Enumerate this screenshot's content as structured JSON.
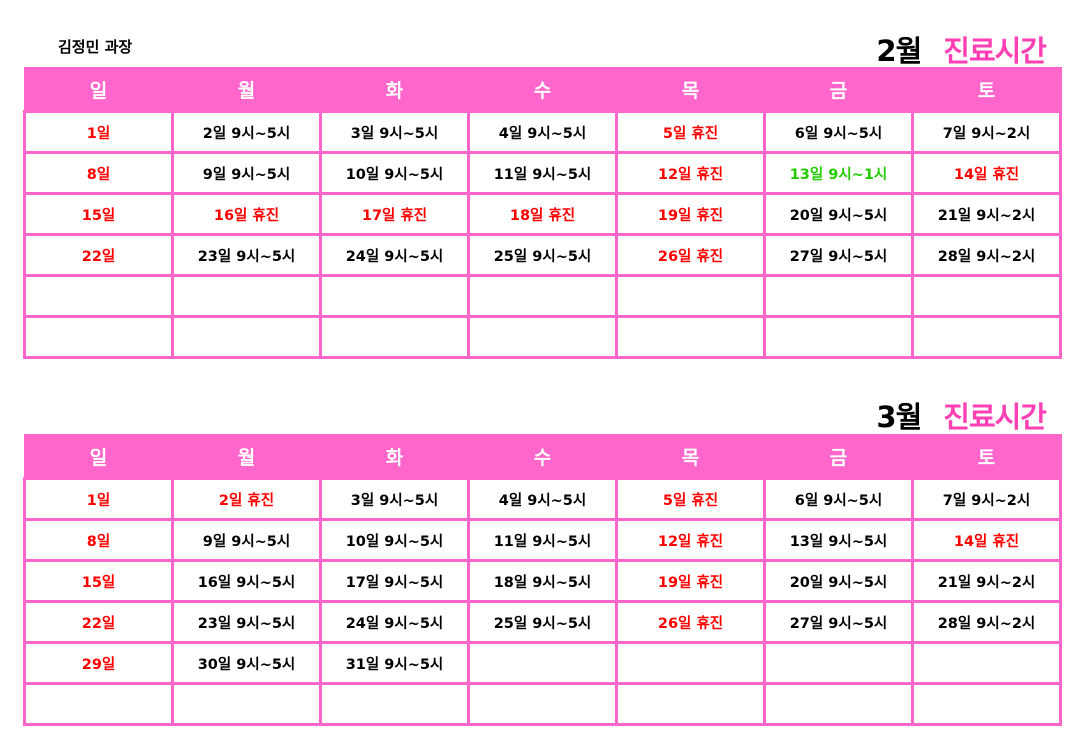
{
  "doctor": "김정민 과장",
  "weekdays": [
    "일",
    "월",
    "화",
    "수",
    "목",
    "금",
    "토"
  ],
  "colors": {
    "header_bg": "#ff66cc",
    "title_accent": "#ff3fb4",
    "holiday": "#ff0000",
    "half_day": "#22cc00",
    "normal": "#000000"
  },
  "months": [
    {
      "month_label": "2월",
      "title_label": "진료시간",
      "rows": [
        [
          {
            "t": "1일",
            "c": "#ff0000"
          },
          {
            "t": "2일 9시~5시",
            "c": "#000000"
          },
          {
            "t": "3일 9시~5시",
            "c": "#000000"
          },
          {
            "t": "4일 9시~5시",
            "c": "#000000"
          },
          {
            "t": "5일 휴진",
            "c": "#ff0000"
          },
          {
            "t": "6일 9시~5시",
            "c": "#000000"
          },
          {
            "t": "7일 9시~2시",
            "c": "#000000"
          }
        ],
        [
          {
            "t": "8일",
            "c": "#ff0000"
          },
          {
            "t": "9일 9시~5시",
            "c": "#000000"
          },
          {
            "t": "10일 9시~5시",
            "c": "#000000"
          },
          {
            "t": "11일 9시~5시",
            "c": "#000000"
          },
          {
            "t": "12일 휴진",
            "c": "#ff0000"
          },
          {
            "t": "13일 9시~1시",
            "c": "#22cc00"
          },
          {
            "t": "14일 휴진",
            "c": "#ff0000"
          }
        ],
        [
          {
            "t": "15일",
            "c": "#ff0000"
          },
          {
            "t": "16일 휴진",
            "c": "#ff0000"
          },
          {
            "t": "17일 휴진",
            "c": "#ff0000"
          },
          {
            "t": "18일 휴진",
            "c": "#ff0000"
          },
          {
            "t": "19일 휴진",
            "c": "#ff0000"
          },
          {
            "t": "20일 9시~5시",
            "c": "#000000"
          },
          {
            "t": "21일 9시~2시",
            "c": "#000000"
          }
        ],
        [
          {
            "t": "22일",
            "c": "#ff0000"
          },
          {
            "t": "23일 9시~5시",
            "c": "#000000"
          },
          {
            "t": "24일 9시~5시",
            "c": "#000000"
          },
          {
            "t": "25일 9시~5시",
            "c": "#000000"
          },
          {
            "t": "26일 휴진",
            "c": "#ff0000"
          },
          {
            "t": "27일 9시~5시",
            "c": "#000000"
          },
          {
            "t": "28일 9시~2시",
            "c": "#000000"
          }
        ],
        [
          {
            "t": "",
            "c": "#000000"
          },
          {
            "t": "",
            "c": "#000000"
          },
          {
            "t": "",
            "c": "#000000"
          },
          {
            "t": "",
            "c": "#000000"
          },
          {
            "t": "",
            "c": "#000000"
          },
          {
            "t": "",
            "c": "#000000"
          },
          {
            "t": "",
            "c": "#000000"
          }
        ],
        [
          {
            "t": "",
            "c": "#000000"
          },
          {
            "t": "",
            "c": "#000000"
          },
          {
            "t": "",
            "c": "#000000"
          },
          {
            "t": "",
            "c": "#000000"
          },
          {
            "t": "",
            "c": "#000000"
          },
          {
            "t": "",
            "c": "#000000"
          },
          {
            "t": "",
            "c": "#000000"
          }
        ]
      ]
    },
    {
      "month_label": "3월",
      "title_label": "진료시간",
      "rows": [
        [
          {
            "t": "1일",
            "c": "#ff0000"
          },
          {
            "t": "2일 휴진",
            "c": "#ff0000"
          },
          {
            "t": "3일 9시~5시",
            "c": "#000000"
          },
          {
            "t": "4일 9시~5시",
            "c": "#000000"
          },
          {
            "t": "5일 휴진",
            "c": "#ff0000"
          },
          {
            "t": "6일 9시~5시",
            "c": "#000000"
          },
          {
            "t": "7일 9시~2시",
            "c": "#000000"
          }
        ],
        [
          {
            "t": "8일",
            "c": "#ff0000"
          },
          {
            "t": "9일 9시~5시",
            "c": "#000000"
          },
          {
            "t": "10일 9시~5시",
            "c": "#000000"
          },
          {
            "t": "11일 9시~5시",
            "c": "#000000"
          },
          {
            "t": "12일 휴진",
            "c": "#ff0000"
          },
          {
            "t": "13일 9시~5시",
            "c": "#000000"
          },
          {
            "t": "14일 휴진",
            "c": "#ff0000"
          }
        ],
        [
          {
            "t": "15일",
            "c": "#ff0000"
          },
          {
            "t": "16일 9시~5시",
            "c": "#000000"
          },
          {
            "t": "17일 9시~5시",
            "c": "#000000"
          },
          {
            "t": "18일 9시~5시",
            "c": "#000000"
          },
          {
            "t": "19일 휴진",
            "c": "#ff0000"
          },
          {
            "t": "20일 9시~5시",
            "c": "#000000"
          },
          {
            "t": "21일 9시~2시",
            "c": "#000000"
          }
        ],
        [
          {
            "t": "22일",
            "c": "#ff0000"
          },
          {
            "t": "23일 9시~5시",
            "c": "#000000"
          },
          {
            "t": "24일 9시~5시",
            "c": "#000000"
          },
          {
            "t": "25일 9시~5시",
            "c": "#000000"
          },
          {
            "t": "26일 휴진",
            "c": "#ff0000"
          },
          {
            "t": "27일 9시~5시",
            "c": "#000000"
          },
          {
            "t": "28일 9시~2시",
            "c": "#000000"
          }
        ],
        [
          {
            "t": "29일",
            "c": "#ff0000"
          },
          {
            "t": "30일 9시~5시",
            "c": "#000000"
          },
          {
            "t": "31일 9시~5시",
            "c": "#000000"
          },
          {
            "t": "",
            "c": "#000000"
          },
          {
            "t": "",
            "c": "#000000"
          },
          {
            "t": "",
            "c": "#000000"
          },
          {
            "t": "",
            "c": "#000000"
          }
        ],
        [
          {
            "t": "",
            "c": "#000000"
          },
          {
            "t": "",
            "c": "#000000"
          },
          {
            "t": "",
            "c": "#000000"
          },
          {
            "t": "",
            "c": "#000000"
          },
          {
            "t": "",
            "c": "#000000"
          },
          {
            "t": "",
            "c": "#000000"
          },
          {
            "t": "",
            "c": "#000000"
          }
        ]
      ]
    }
  ]
}
